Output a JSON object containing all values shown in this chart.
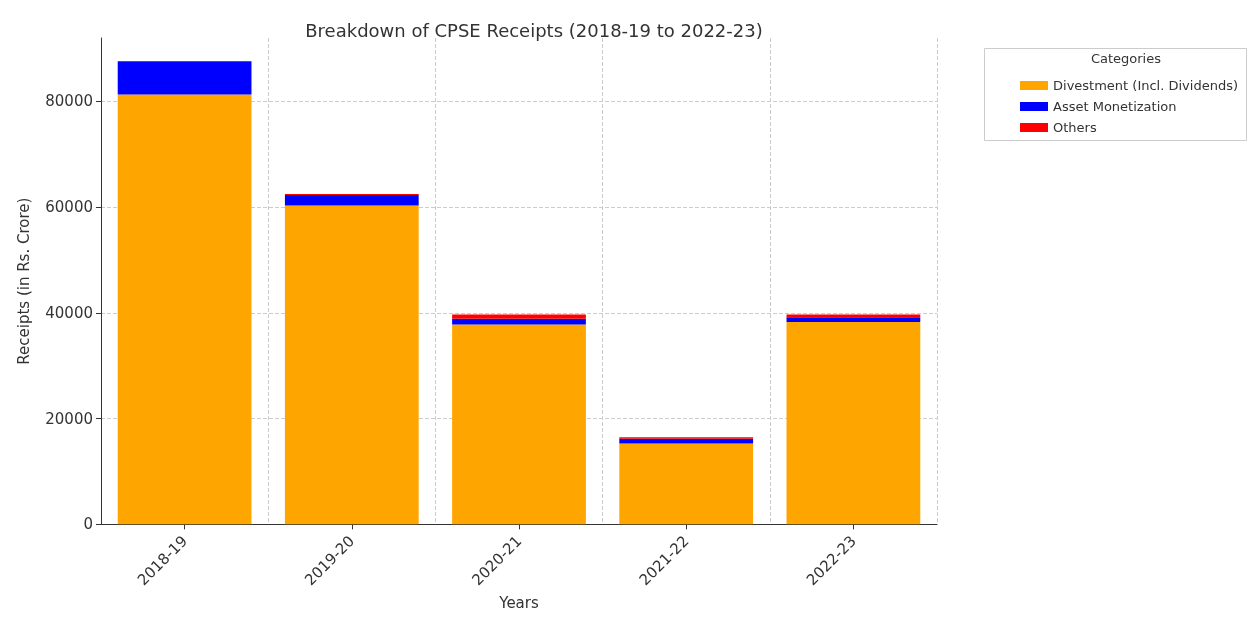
{
  "chart_data": {
    "type": "bar",
    "title": "Breakdown of CPSE Receipts (2018-19 to 2022-23)",
    "xlabel": "Years",
    "ylabel": "Receipts (in Rs. Crore)",
    "legend_title": "Categories",
    "categories": [
      "2018-19",
      "2019-20",
      "2020-21",
      "2021-22",
      "2022-23"
    ],
    "series": [
      {
        "name": "Divestment (Incl. Dividends)",
        "color": "#ffa500",
        "values": [
          81300,
          60300,
          37800,
          15300,
          38300
        ]
      },
      {
        "name": "Asset Monetization",
        "color": "#0000ff",
        "values": [
          6300,
          2000,
          1100,
          900,
          900
        ]
      },
      {
        "name": "Others",
        "color": "#ff0000",
        "values": [
          null,
          200,
          800,
          300,
          500
        ]
      }
    ],
    "stacked": true,
    "ylim": [
      0,
      92000
    ],
    "yticks": [
      0,
      20000,
      40000,
      60000,
      80000
    ],
    "grid": true,
    "legend": "top right"
  }
}
